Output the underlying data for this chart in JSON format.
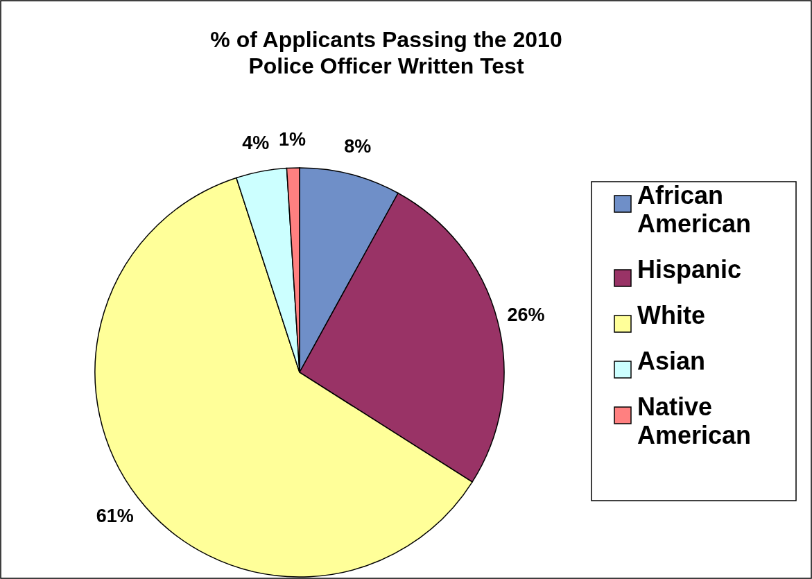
{
  "chart_data": {
    "type": "pie",
    "title": "% of Applicants Passing the 2010 Police Officer Written Test",
    "categories": [
      "African American",
      "Hispanic",
      "White",
      "Asian",
      "Native American"
    ],
    "values": [
      8,
      26,
      61,
      4,
      1
    ],
    "value_labels": [
      "8%",
      "26%",
      "61%",
      "4%",
      "1%"
    ],
    "colors": [
      "#6f8fc8",
      "#993366",
      "#ffff99",
      "#ccffff",
      "#ff8080"
    ],
    "legend": "right"
  }
}
